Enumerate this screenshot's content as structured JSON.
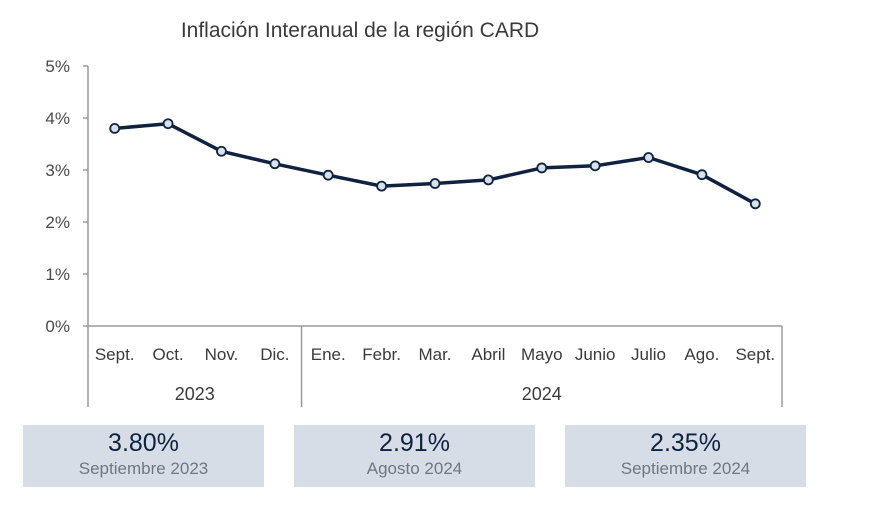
{
  "chart_data": {
    "type": "line",
    "title": "Inflación Interanual de la región CARD",
    "categories": [
      "Sept.",
      "Oct.",
      "Nov.",
      "Dic.",
      "Ene.",
      "Febr.",
      "Mar.",
      "Abril",
      "Mayo",
      "Junio",
      "Julio",
      "Ago.",
      "Sept."
    ],
    "groups": [
      {
        "label": "2023",
        "count": 4
      },
      {
        "label": "2024",
        "count": 9
      }
    ],
    "values": [
      3.8,
      3.89,
      3.36,
      3.12,
      2.9,
      2.69,
      2.74,
      2.81,
      3.04,
      3.08,
      3.24,
      2.91,
      2.35
    ],
    "ylim": [
      0,
      5
    ],
    "yticks": [
      "0%",
      "1%",
      "2%",
      "3%",
      "4%",
      "5%"
    ],
    "grid": false,
    "line_color": "#0f2340",
    "marker_fill": "#d8e0ea"
  },
  "cards": [
    {
      "value": "3.80%",
      "label": "Septiembre 2023"
    },
    {
      "value": "2.91%",
      "label": "Agosto 2024"
    },
    {
      "value": "2.35%",
      "label": "Septiembre 2024"
    }
  ]
}
